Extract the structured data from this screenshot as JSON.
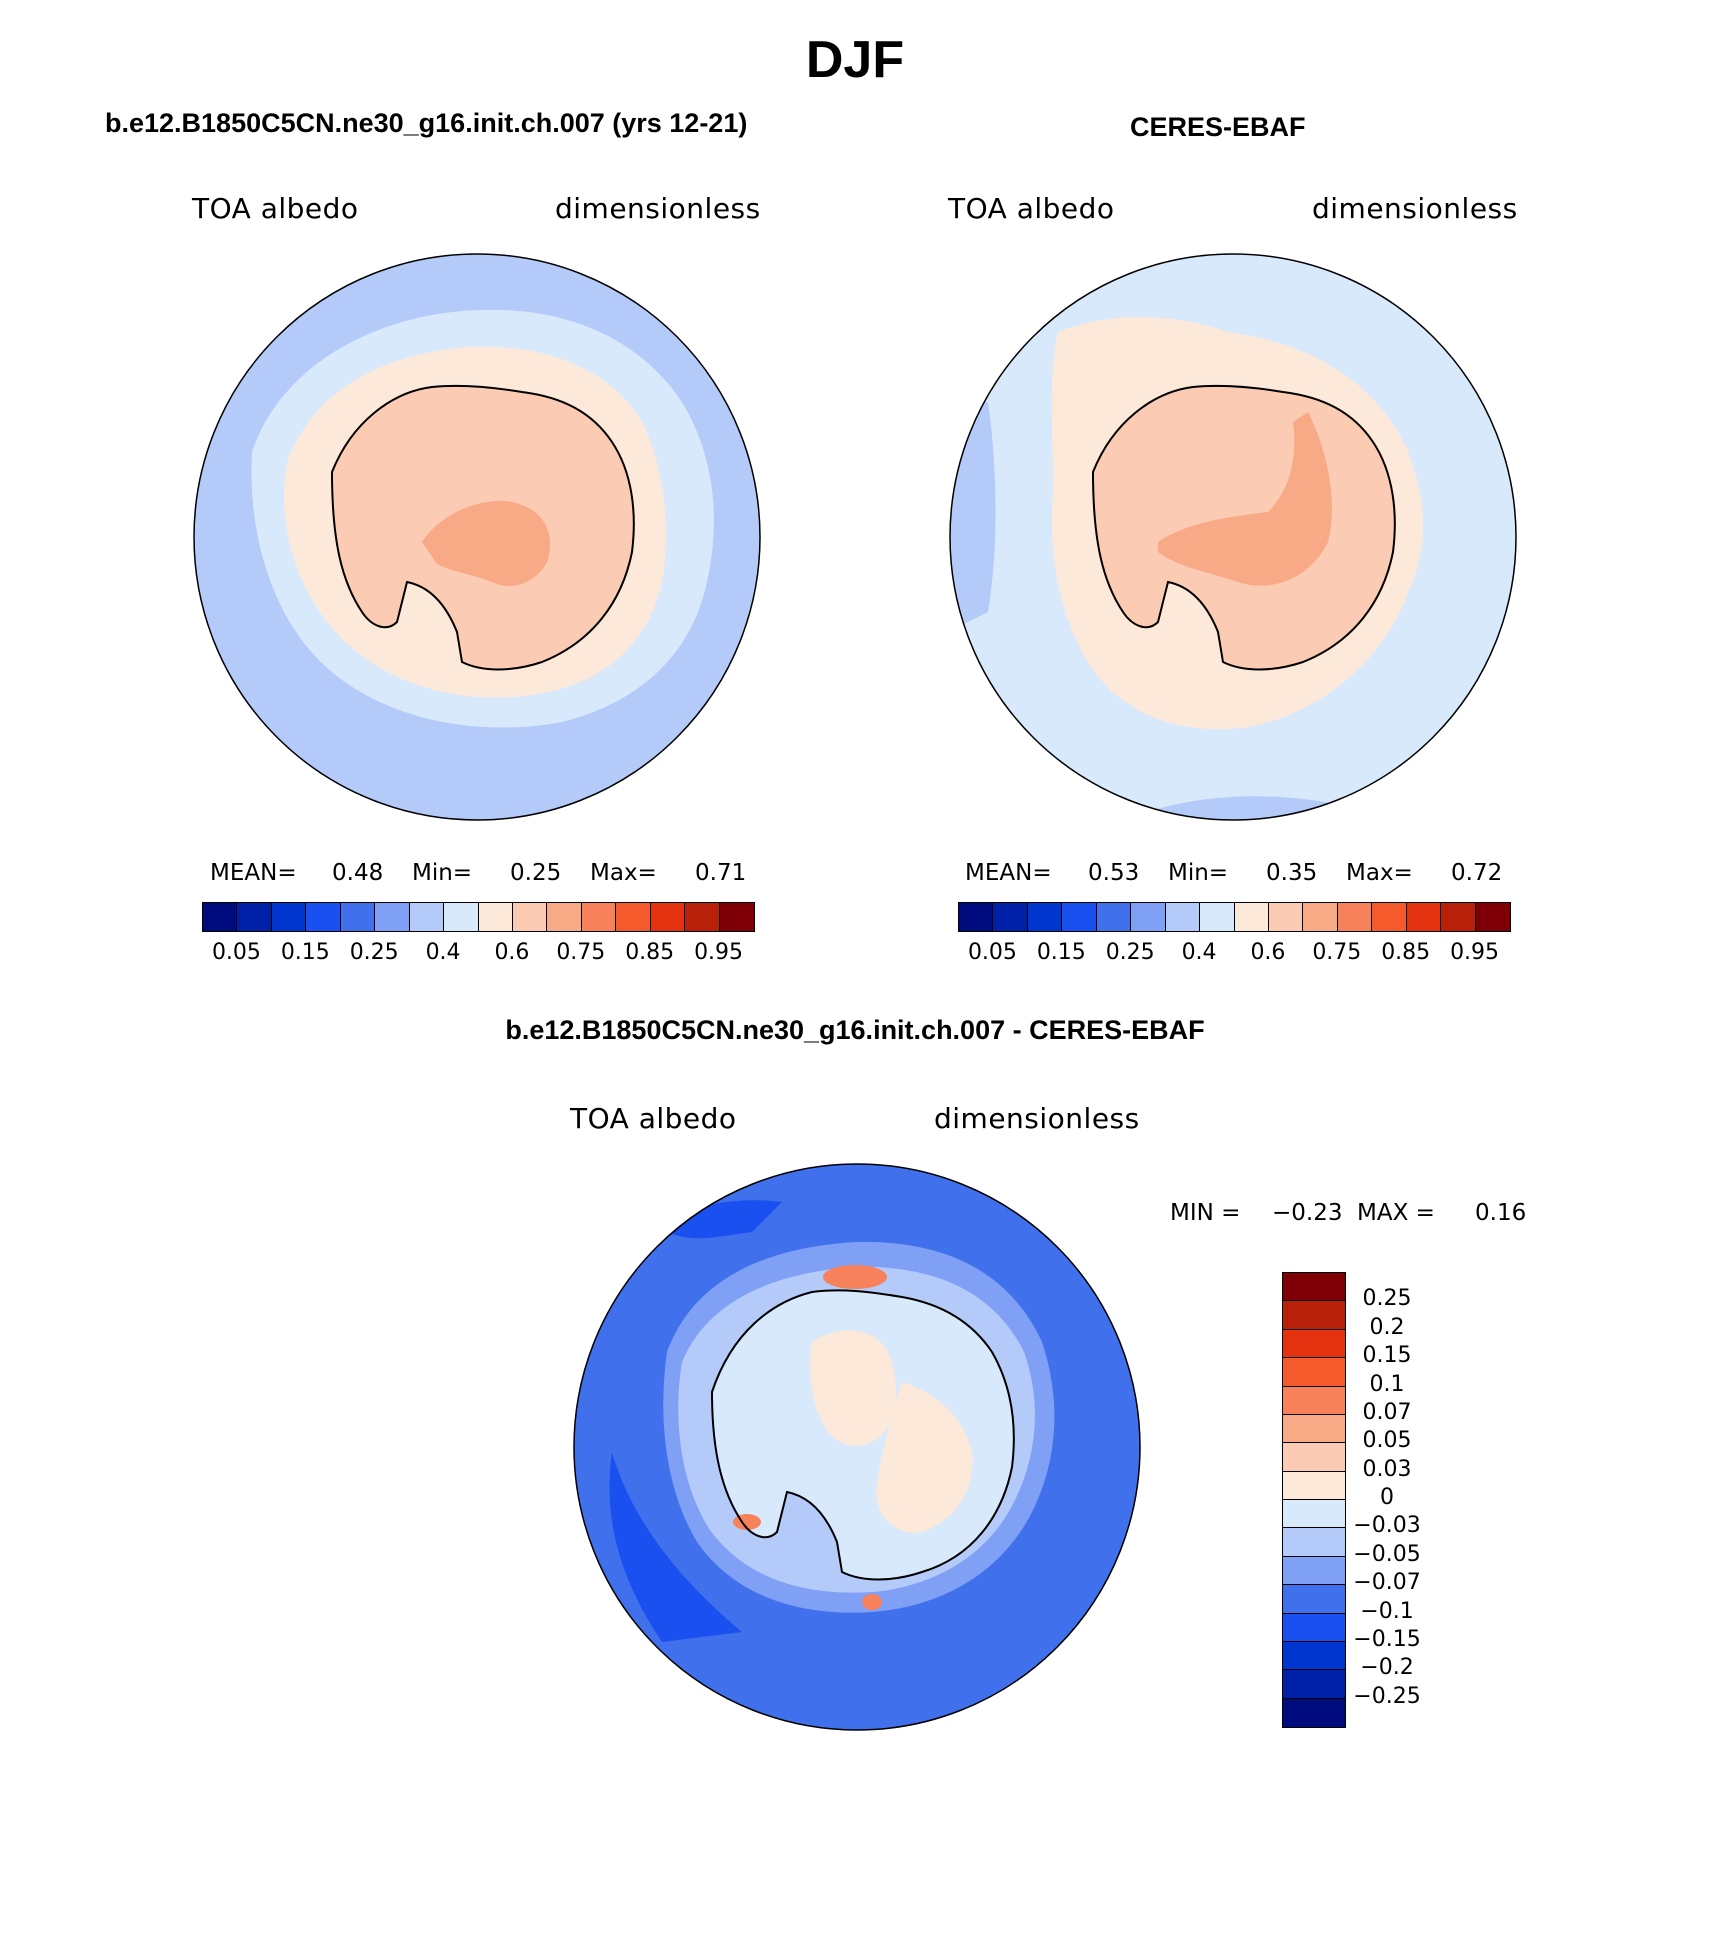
{
  "figure": {
    "title": "DJF"
  },
  "panels": [
    {
      "title": "b.e12.B1850C5CN.ne30_g16.init.ch.007 (yrs 12-21)",
      "variable": "TOA albedo",
      "units": "dimensionless",
      "stats": {
        "mean_label": "MEAN=",
        "mean": "0.48",
        "min_label": "Min=",
        "min": "0.25",
        "max_label": "Max=",
        "max": "0.71"
      }
    },
    {
      "title": "CERES-EBAF",
      "variable": "TOA albedo",
      "units": "dimensionless",
      "stats": {
        "mean_label": "MEAN=",
        "mean": "0.53",
        "min_label": "Min=",
        "min": "0.35",
        "max_label": "Max=",
        "max": "0.72"
      }
    },
    {
      "title": "b.e12.B1850C5CN.ne30_g16.init.ch.007 - CERES-EBAF",
      "variable": "TOA albedo",
      "units": "dimensionless",
      "stats": {
        "min_label": "MIN =",
        "min": "−0.23",
        "max_label": "MAX =",
        "max": "0.16"
      }
    }
  ],
  "colorbar_top": {
    "colors": [
      "#000c7d",
      "#0020a8",
      "#0035d0",
      "#1a50f0",
      "#4070ec",
      "#7fa0f4",
      "#b4cbfa",
      "#d8e9fc",
      "#fde9d9",
      "#fbcbb3",
      "#f8a985",
      "#f7815a",
      "#f55a2c",
      "#e23210",
      "#b9200a",
      "#7e0006"
    ],
    "labels": [
      "0.05",
      "0.15",
      "0.25",
      "0.4",
      "0.6",
      "0.75",
      "0.85",
      "0.95"
    ]
  },
  "colorbar_diff": {
    "colors_top_to_bottom": [
      "#7e0006",
      "#b9200a",
      "#e23210",
      "#f55a2c",
      "#f7815a",
      "#f8a985",
      "#fbcbb3",
      "#fde9d9",
      "#d8e9fc",
      "#b4cbfa",
      "#7fa0f4",
      "#4070ec",
      "#1a50f0",
      "#0035d0",
      "#0020a8",
      "#000c7d"
    ],
    "labels": [
      "0.25",
      "0.2",
      "0.15",
      "0.1",
      "0.07",
      "0.05",
      "0.03",
      "0",
      "−0.03",
      "−0.05",
      "−0.07",
      "−0.1",
      "−0.15",
      "−0.2",
      "−0.25"
    ]
  },
  "map_colors": {
    "ocean_model": "#b4cbfa",
    "seaice_model": "#d8e9fc",
    "ice_edge_model": "#fde9d9",
    "land_model": "#fbcbb3",
    "high_model": "#f8a985",
    "ocean_obs": "#d8e9fc",
    "ocean_obs_low": "#b4cbfa",
    "ice_edge_obs": "#fde9d9",
    "land_obs": "#fbcbb3",
    "high_obs": "#f8a985",
    "diff_ocean": "#4070ec",
    "diff_ocean_strong": "#1a50f0",
    "diff_ring": "#b4cbfa",
    "diff_ring2": "#d8e9fc",
    "diff_land": "#d8e9fc",
    "diff_land_pos": "#fde9d9",
    "diff_hot": "#f7815a"
  }
}
